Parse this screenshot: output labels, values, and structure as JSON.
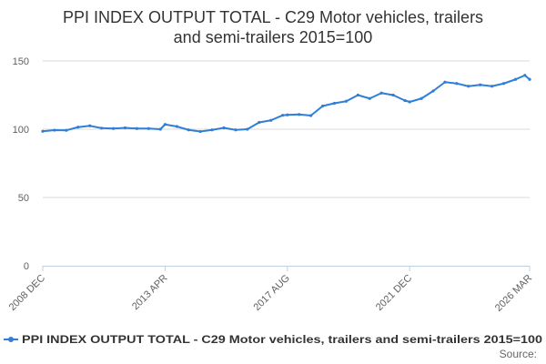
{
  "chart_data": {
    "type": "line",
    "title_lines": [
      "PPI INDEX OUTPUT TOTAL - C29 Motor vehicles, trailers",
      "and semi-trailers 2015=100"
    ],
    "xlabel": "",
    "ylabel": "",
    "ylim": [
      0,
      150
    ],
    "y_ticks": [
      "0",
      "50",
      "100",
      "150"
    ],
    "x_ticks": [
      "2008 DEC",
      "2013 APR",
      "2017 AUG",
      "2021 DEC",
      "2026 MAR"
    ],
    "grid": "horizontal",
    "legend_position": "bottom",
    "colors": {
      "series": "#2f7ed8",
      "grid": "#d8d8d8",
      "axis": "#c0d0e0"
    },
    "series": [
      {
        "name": "PPI INDEX OUTPUT TOTAL - C29 Motor vehicles, trailers and semi-trailers 2015=100",
        "x": [
          "2008 DEC",
          "2009 MAY",
          "2009 OCT",
          "2010 MAR",
          "2010 AUG",
          "2011 JAN",
          "2011 JUN",
          "2011 NOV",
          "2012 APR",
          "2012 SEP",
          "2013 FEB",
          "2013 APR",
          "2013 SEP",
          "2014 FEB",
          "2014 JUL",
          "2014 DEC",
          "2015 MAY",
          "2015 OCT",
          "2016 MAR",
          "2016 AUG",
          "2017 JAN",
          "2017 JUN",
          "2017 AUG",
          "2018 JAN",
          "2018 JUN",
          "2018 NOV",
          "2019 APR",
          "2019 SEP",
          "2020 FEB",
          "2020 JUL",
          "2020 DEC",
          "2021 MAY",
          "2021 OCT",
          "2021 DEC",
          "2022 MAY",
          "2022 OCT",
          "2023 MAR",
          "2023 AUG",
          "2024 JAN",
          "2024 JUN",
          "2024 NOV",
          "2025 APR",
          "2025 SEP",
          "2026 JAN",
          "2026 MAR"
        ],
        "values": [
          98.5,
          99.3,
          99.2,
          101.5,
          102.5,
          100.8,
          100.5,
          101,
          100.5,
          100.5,
          100,
          103.5,
          102,
          99.5,
          98.3,
          99.5,
          101,
          99.5,
          100,
          105,
          106.5,
          110.2,
          110.5,
          110.8,
          110,
          117,
          119,
          120.5,
          125,
          122.5,
          126.5,
          125,
          121,
          120,
          122.5,
          128,
          134.5,
          133.5,
          131.5,
          132.5,
          131.5,
          133.5,
          136.5,
          139.5,
          136.5
        ]
      }
    ]
  },
  "source_label": "Source:"
}
